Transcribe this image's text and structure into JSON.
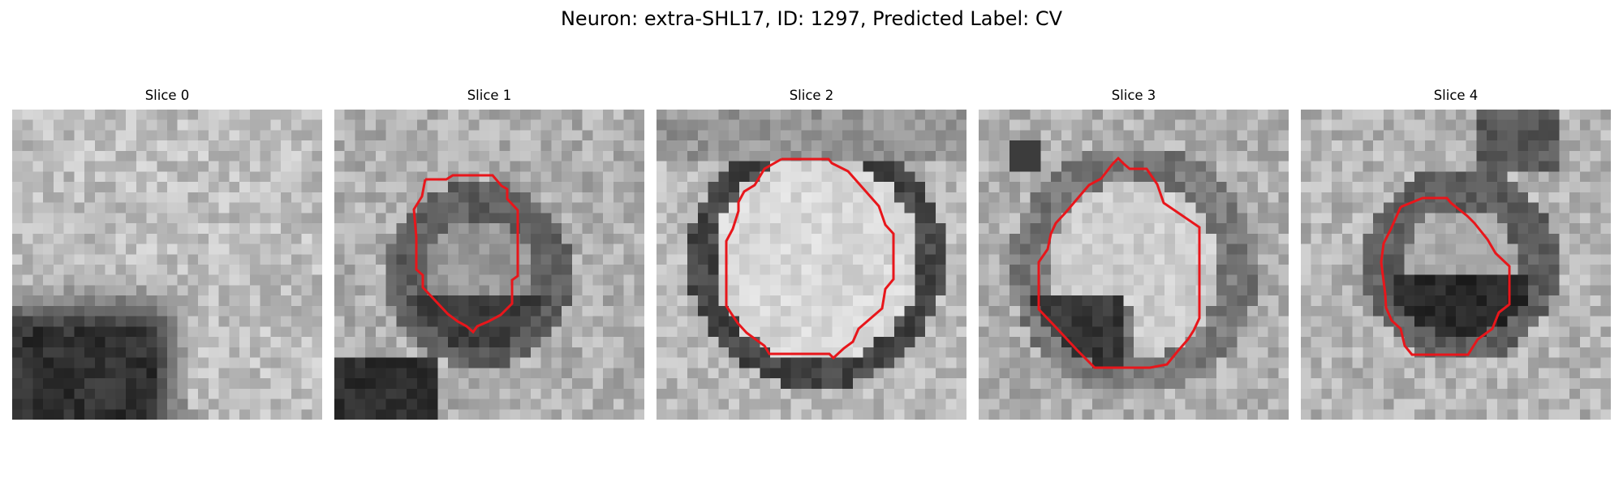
{
  "figure": {
    "title": "Neuron: extra-SHL17, ID: 1297, Predicted Label: CV"
  },
  "contour_color": "#e8161b",
  "slices": [
    {
      "label": "Slice 0",
      "has_contour": false,
      "pattern": "dark-lower-left-diagonal"
    },
    {
      "label": "Slice 1",
      "has_contour": true,
      "pattern": "small-dark-ring"
    },
    {
      "label": "Slice 2",
      "has_contour": true,
      "pattern": "large-bright-vesicle-dark-rim"
    },
    {
      "label": "Slice 3",
      "has_contour": true,
      "pattern": "bright-vesicle-dark-lower-left"
    },
    {
      "label": "Slice 4",
      "has_contour": true,
      "pattern": "small-dark-ring-lower"
    }
  ]
}
